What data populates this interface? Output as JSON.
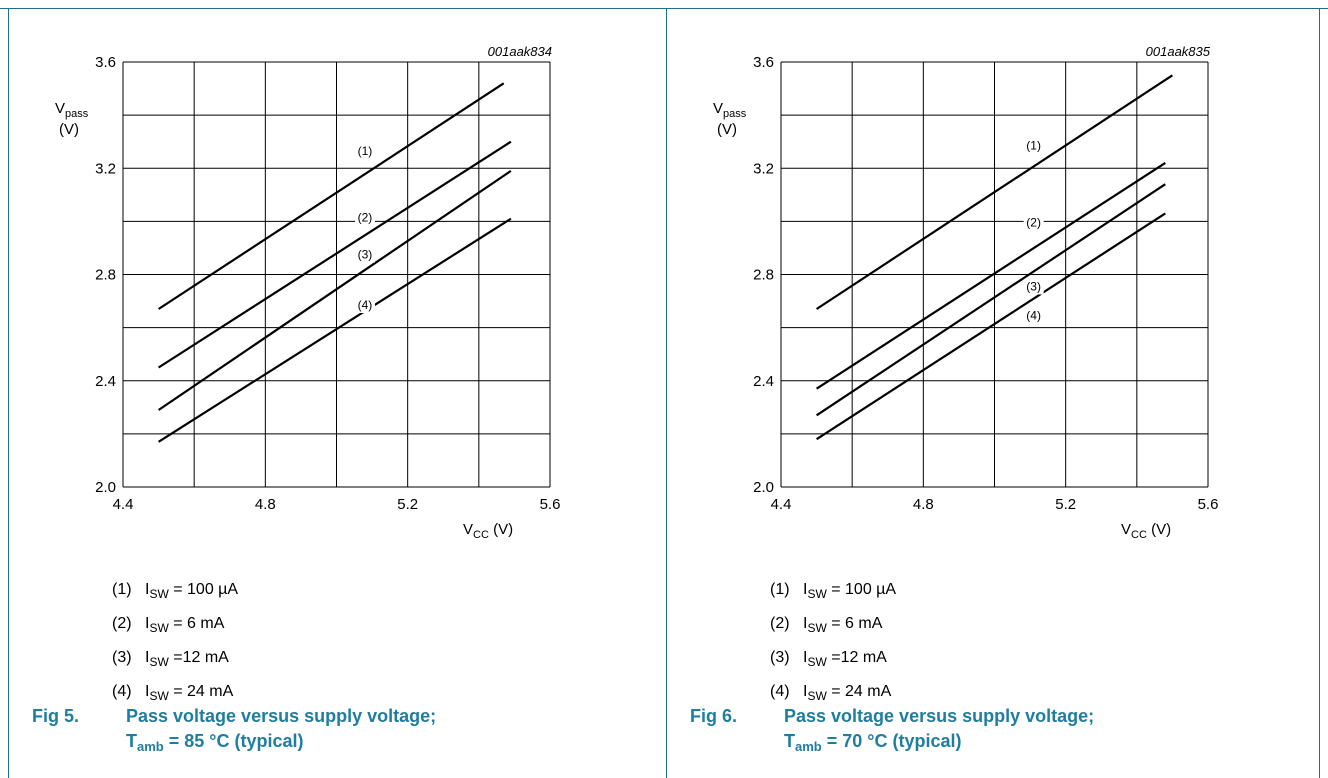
{
  "chart_data": [
    {
      "type": "line",
      "id_label": "001aak834",
      "xlabel": "V",
      "xlabel_sub": "CC",
      "xlabel_unit": " (V)",
      "ylabel": "V",
      "ylabel_sub": "pass",
      "ylabel_unit": "(V)",
      "xlim": [
        4.4,
        5.6
      ],
      "ylim": [
        2.0,
        3.6
      ],
      "xticks": [
        "4.4",
        "4.8",
        "5.2",
        "5.6"
      ],
      "yticks": [
        "2.0",
        "2.4",
        "2.8",
        "3.2",
        "3.6"
      ],
      "grid": true,
      "series": [
        {
          "name": "(1)",
          "x": [
            4.5,
            5.47
          ],
          "y": [
            2.67,
            3.52
          ],
          "label_x": 5.08,
          "label_y": 3.25
        },
        {
          "name": "(2)",
          "x": [
            4.5,
            5.49
          ],
          "y": [
            2.45,
            3.3
          ],
          "label_x": 5.08,
          "label_y": 3.0
        },
        {
          "name": "(3)",
          "x": [
            4.5,
            5.49
          ],
          "y": [
            2.29,
            3.19
          ],
          "label_x": 5.08,
          "label_y": 2.86
        },
        {
          "name": "(4)",
          "x": [
            4.5,
            5.49
          ],
          "y": [
            2.17,
            3.01
          ],
          "label_x": 5.08,
          "label_y": 2.67
        }
      ],
      "legend": [
        {
          "num": "(1)",
          "sym": "I",
          "sub": "SW",
          "rest": " = 100 µA"
        },
        {
          "num": "(2)",
          "sym": "I",
          "sub": "SW",
          "rest": " = 6 mA"
        },
        {
          "num": "(3)",
          "sym": "I",
          "sub": "SW",
          "rest": " =12 mA"
        },
        {
          "num": "(4)",
          "sym": "I",
          "sub": "SW",
          "rest": " = 24 mA"
        }
      ],
      "caption": {
        "fig": "Fig 5.",
        "line1": "Pass voltage versus supply voltage;",
        "line2_sym": "T",
        "line2_sub": "amb",
        "line2_rest": " = 85 °C (typical)"
      }
    },
    {
      "type": "line",
      "id_label": "001aak835",
      "xlabel": "V",
      "xlabel_sub": "CC",
      "xlabel_unit": " (V)",
      "ylabel": "V",
      "ylabel_sub": "pass",
      "ylabel_unit": "(V)",
      "xlim": [
        4.4,
        5.6
      ],
      "ylim": [
        2.0,
        3.6
      ],
      "xticks": [
        "4.4",
        "4.8",
        "5.2",
        "5.6"
      ],
      "yticks": [
        "2.0",
        "2.4",
        "2.8",
        "3.2",
        "3.6"
      ],
      "grid": true,
      "series": [
        {
          "name": "(1)",
          "x": [
            4.5,
            5.5
          ],
          "y": [
            2.67,
            3.55
          ],
          "label_x": 5.11,
          "label_y": 3.27
        },
        {
          "name": "(2)",
          "x": [
            4.5,
            5.48
          ],
          "y": [
            2.37,
            3.22
          ],
          "label_x": 5.11,
          "label_y": 2.98
        },
        {
          "name": "(3)",
          "x": [
            4.5,
            5.48
          ],
          "y": [
            2.27,
            3.14
          ],
          "label_x": 5.11,
          "label_y": 2.74
        },
        {
          "name": "(4)",
          "x": [
            4.5,
            5.48
          ],
          "y": [
            2.18,
            3.03
          ],
          "label_x": 5.11,
          "label_y": 2.63
        }
      ],
      "legend": [
        {
          "num": "(1)",
          "sym": "I",
          "sub": "SW",
          "rest": " = 100 µA"
        },
        {
          "num": "(2)",
          "sym": "I",
          "sub": "SW",
          "rest": " = 6 mA"
        },
        {
          "num": "(3)",
          "sym": "I",
          "sub": "SW",
          "rest": " =12 mA"
        },
        {
          "num": "(4)",
          "sym": "I",
          "sub": "SW",
          "rest": " = 24 mA"
        }
      ],
      "caption": {
        "fig": "Fig 6.",
        "line1": "Pass voltage versus supply voltage;",
        "line2_sym": "T",
        "line2_sub": "amb",
        "line2_rest": " = 70 °C (typical)"
      }
    }
  ]
}
